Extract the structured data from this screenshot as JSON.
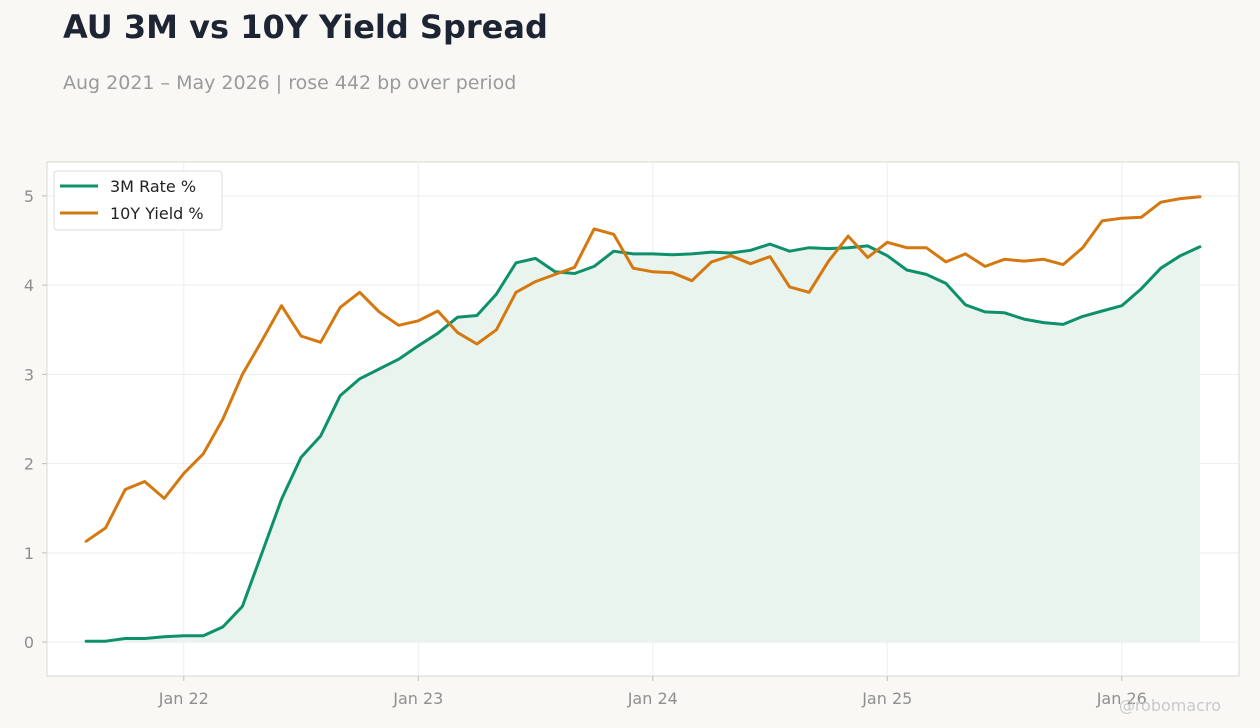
{
  "header": {
    "title": "AU 3M vs 10Y Yield Spread",
    "subtitle": "Aug 2021 – May 2026 | rose 442 bp over period"
  },
  "watermark": "@robomacro",
  "colors": {
    "background": "#f9f8f4",
    "plot_background": "#ffffff",
    "rate_3m": "#0e916b",
    "yield_10y": "#d4780f",
    "fill": "#e9f4ef",
    "grid": "#ededed",
    "frame": "#d8d8d0"
  },
  "chart_data": {
    "type": "line",
    "title": "AU 3M vs 10Y Yield Spread",
    "subtitle": "Aug 2021 – May 2026 | rose 442 bp over period",
    "xlabel": "",
    "ylabel": "",
    "x_start": "2021-08",
    "x_end": "2026-05",
    "xlim": [
      "2021-06",
      "2026-07"
    ],
    "ylim": [
      -0.38,
      5.38
    ],
    "grid": true,
    "legend_position": "top-left",
    "x_ticks": [
      {
        "label": "Jan 22",
        "date": "2022-01"
      },
      {
        "label": "Jan 23",
        "date": "2023-01"
      },
      {
        "label": "Jan 24",
        "date": "2024-01"
      },
      {
        "label": "Jan 25",
        "date": "2025-01"
      },
      {
        "label": "Jan 26",
        "date": "2026-01"
      }
    ],
    "y_ticks": [
      0,
      1,
      2,
      3,
      4,
      5
    ],
    "series": [
      {
        "name": "3M Rate %",
        "color": "#0e916b",
        "fill_to_zero": true,
        "values": [
          0.01,
          0.01,
          0.04,
          0.04,
          0.06,
          0.07,
          0.07,
          0.17,
          0.4,
          1.0,
          1.6,
          2.07,
          2.31,
          2.76,
          2.95,
          3.06,
          3.17,
          3.32,
          3.46,
          3.64,
          3.66,
          3.9,
          4.25,
          4.3,
          4.15,
          4.13,
          4.21,
          4.38,
          4.35,
          4.35,
          4.34,
          4.35,
          4.37,
          4.36,
          4.39,
          4.46,
          4.38,
          4.42,
          4.41,
          4.42,
          4.44,
          4.33,
          4.17,
          4.12,
          4.02,
          3.78,
          3.7,
          3.69,
          3.62,
          3.58,
          3.56,
          3.65,
          3.71,
          3.77,
          3.96,
          4.19,
          4.33,
          4.43
        ]
      },
      {
        "name": "10Y Yield %",
        "color": "#d4780f",
        "fill_to_zero": false,
        "values": [
          1.13,
          1.28,
          1.71,
          1.8,
          1.61,
          1.89,
          2.11,
          2.5,
          3.0,
          3.38,
          3.77,
          3.43,
          3.36,
          3.75,
          3.92,
          3.7,
          3.55,
          3.6,
          3.71,
          3.47,
          3.34,
          3.5,
          3.92,
          4.04,
          4.12,
          4.2,
          4.63,
          4.57,
          4.19,
          4.15,
          4.14,
          4.05,
          4.26,
          4.33,
          4.24,
          4.32,
          3.98,
          3.92,
          4.27,
          4.55,
          4.31,
          4.48,
          4.42,
          4.42,
          4.26,
          4.35,
          4.21,
          4.29,
          4.27,
          4.29,
          4.23,
          4.42,
          4.72,
          4.75,
          4.76,
          4.93,
          4.97,
          4.99
        ]
      }
    ]
  }
}
